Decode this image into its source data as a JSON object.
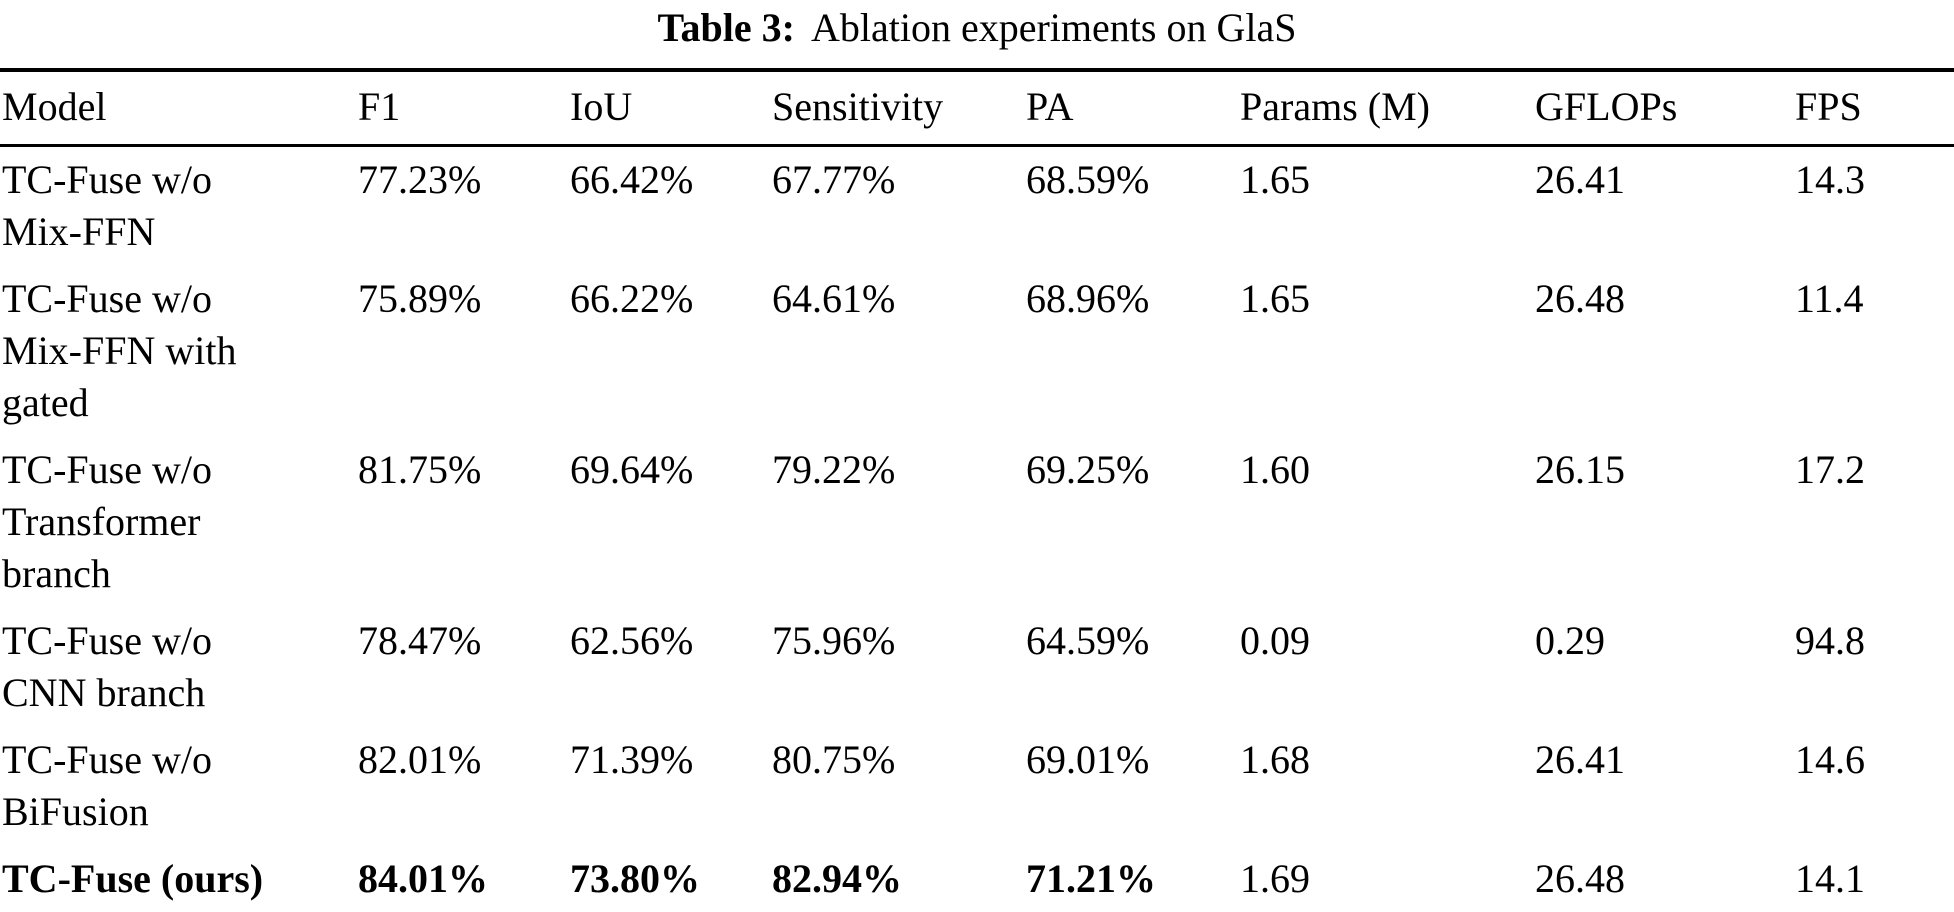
{
  "caption": {
    "label": "Table 3:",
    "text": "Ablation experiments on GlaS"
  },
  "table": {
    "columns": [
      "Model",
      "F1",
      "IoU",
      "Sensitivity",
      "PA",
      "Params (M)",
      "GFLOPs",
      "FPS"
    ],
    "rows": [
      {
        "model": "TC-Fuse w/o Mix-FFN",
        "f1": "77.23%",
        "iou": "66.42%",
        "sensitivity": "67.77%",
        "pa": "68.59%",
        "params": "1.65",
        "gflops": "26.41",
        "fps": "14.3",
        "emphasized": false
      },
      {
        "model": "TC-Fuse w/o Mix-FFN with gated",
        "f1": "75.89%",
        "iou": "66.22%",
        "sensitivity": "64.61%",
        "pa": "68.96%",
        "params": "1.65",
        "gflops": "26.48",
        "fps": "11.4",
        "emphasized": false
      },
      {
        "model": "TC-Fuse w/o Transformer branch",
        "f1": "81.75%",
        "iou": "69.64%",
        "sensitivity": "79.22%",
        "pa": "69.25%",
        "params": "1.60",
        "gflops": "26.15",
        "fps": "17.2",
        "emphasized": false
      },
      {
        "model": "TC-Fuse w/o CNN branch",
        "f1": "78.47%",
        "iou": "62.56%",
        "sensitivity": "75.96%",
        "pa": "64.59%",
        "params": "0.09",
        "gflops": "0.29",
        "fps": "94.8",
        "emphasized": false
      },
      {
        "model": "TC-Fuse w/o BiFusion",
        "f1": "82.01%",
        "iou": "71.39%",
        "sensitivity": "80.75%",
        "pa": "69.01%",
        "params": "1.68",
        "gflops": "26.41",
        "fps": "14.6",
        "emphasized": false
      },
      {
        "model": "TC-Fuse (ours)",
        "f1": "84.01%",
        "iou": "73.80%",
        "sensitivity": "82.94%",
        "pa": "71.21%",
        "params": "1.69",
        "gflops": "26.48",
        "fps": "14.1",
        "emphasized": true
      }
    ]
  }
}
